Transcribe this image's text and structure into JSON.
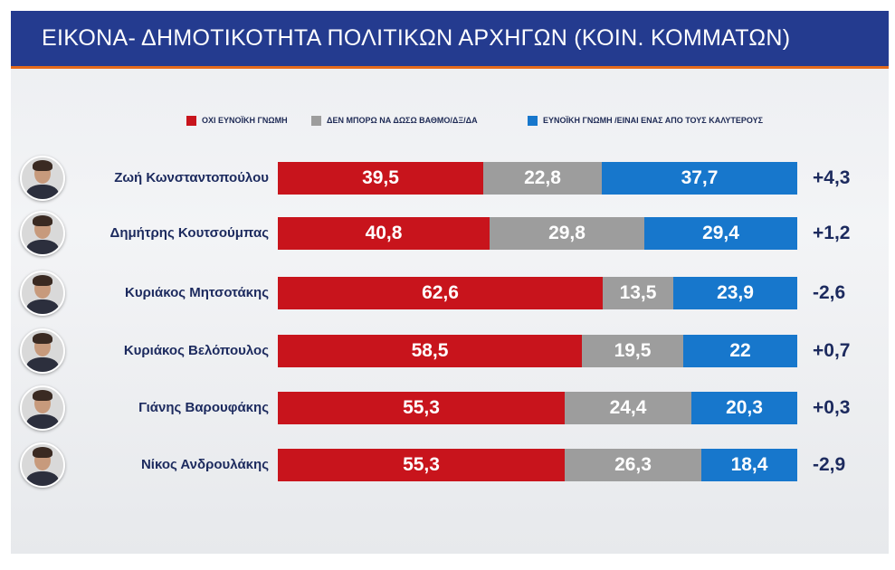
{
  "title": "ΕΙΚΟΝΑ- ΔΗΜΟΤΙΚΟΤΗΤΑ ΠΟΛΙΤΙΚΩΝ ΑΡΧΗΓΩΝ (ΚΟΙΝ. ΚΟΜΜΑΤΩΝ)",
  "colors": {
    "title_bar": "#243b8f",
    "title_accent": "#e46a1c",
    "unfavorable": "#c8141c",
    "undecided": "#9d9d9d",
    "favorable": "#1777cc",
    "text_dark": "#1c2a5e"
  },
  "chart_data": {
    "type": "bar",
    "orientation": "horizontal",
    "stacked": true,
    "title": "ΕΙΚΟΝΑ- ΔΗΜΟΤΙΚΟΤΗΤΑ ΠΟΛΙΤΙΚΩΝ ΑΡΧΗΓΩΝ (ΚΟΙΝ. ΚΟΜΜΑΤΩΝ)",
    "legend_position": "top",
    "grid": false,
    "categories": [
      "Ζωή Κωνσταντοπούλου",
      "Δημήτρης Κουτσούμπας",
      "Κυριάκος Μητσοτάκης",
      "Κυριάκος Βελόπουλος",
      "Γιάνης Βαρουφάκης",
      "Νίκος Ανδρουλάκης"
    ],
    "series": [
      {
        "name": "ΟΧΙ ΕΥΝΟΪΚΗ ΓΝΩΜΗ",
        "color": "#c8141c",
        "values": [
          39.5,
          40.8,
          62.6,
          58.5,
          55.3,
          55.3
        ],
        "labels": [
          "39,5",
          "40,8",
          "62,6",
          "58,5",
          "55,3",
          "55,3"
        ]
      },
      {
        "name": "ΔΕΝ ΜΠΟΡΩ ΝΑ ΔΩΣΩ ΒΑΘΜΟ/ΔΞ/ΔΑ",
        "color": "#9d9d9d",
        "values": [
          22.8,
          29.8,
          13.5,
          19.5,
          24.4,
          26.3
        ],
        "labels": [
          "22,8",
          "29,8",
          "13,5",
          "19,5",
          "24,4",
          "26,3"
        ]
      },
      {
        "name": "ΕΥΝΟΪΚΗ ΓΝΩΜΗ /ΕΙΝΑΙ ΕΝΑΣ ΑΠΟ ΤΟΥΣ ΚΑΛΥΤΕΡΟΥΣ",
        "color": "#1777cc",
        "values": [
          37.7,
          29.4,
          23.9,
          22,
          20.3,
          18.4
        ],
        "labels": [
          "37,7",
          "29,4",
          "23,9",
          "22",
          "20,3",
          "18,4"
        ]
      }
    ],
    "changes": [
      "+4,3",
      "+1,2",
      "-2,6",
      "+0,7",
      "+0,3",
      "-2,9"
    ],
    "total": 100
  }
}
